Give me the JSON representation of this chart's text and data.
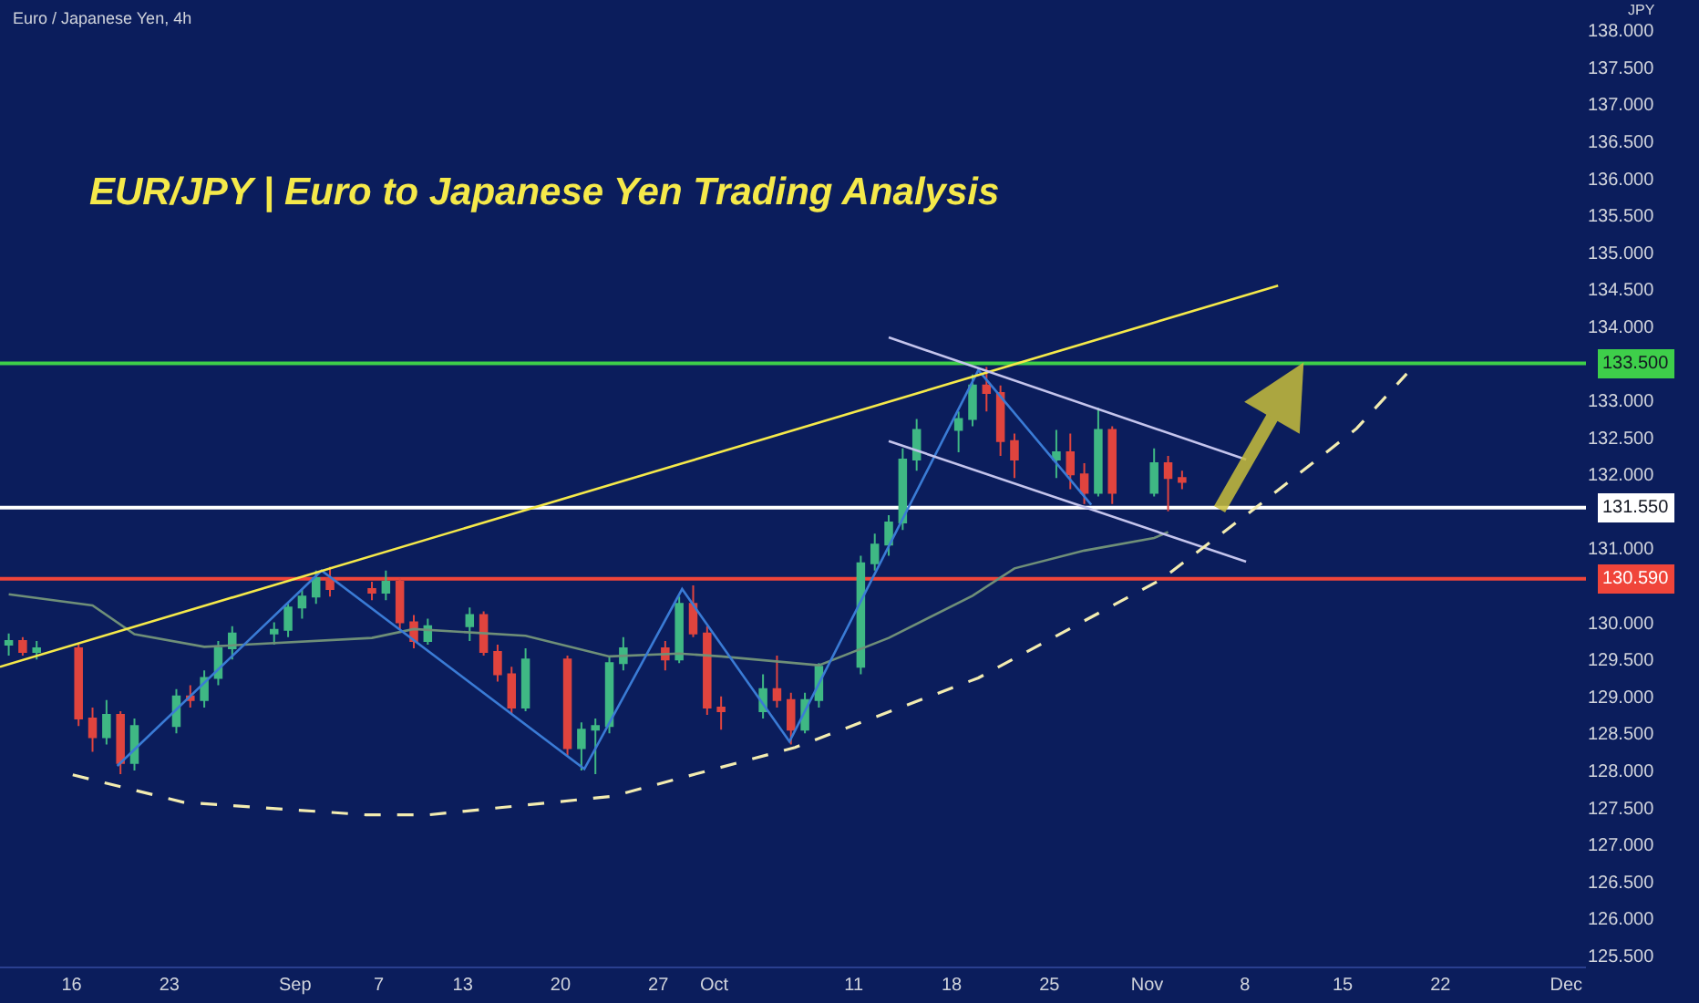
{
  "chart_data": {
    "type": "candlestick",
    "title": "EUR/JPY | Euro to Japanese Yen Trading Analysis",
    "ylabel": "JPY",
    "annotations": [
      "Euro / Japanese Yen, 4h"
    ],
    "x": [
      "--08-11T12:00",
      "--08-12T12:00",
      "--08-13T12:00",
      "--08-16T12:00",
      "--08-17T12:00",
      "--08-18T12:00",
      "--08-19T12:00",
      "--08-20T12:00",
      "--08-23T12:00",
      "--08-24T12:00",
      "--08-25T12:00",
      "--08-26T12:00",
      "--08-27T12:00",
      "--08-30T12:00",
      "--08-31T12:00",
      "--09-01T12:00",
      "--09-02T12:00",
      "--09-03T12:00",
      "--09-06T12:00",
      "--09-07T12:00",
      "--09-08T12:00",
      "--09-09T12:00",
      "--09-10T12:00",
      "--09-13T12:00",
      "--09-14T12:00",
      "--09-15T12:00",
      "--09-16T12:00",
      "--09-17T12:00",
      "--09-20T12:00",
      "--09-21T12:00",
      "--09-22T12:00",
      "--09-23T12:00",
      "--09-24T12:00",
      "--09-27T12:00",
      "--09-28T12:00",
      "--09-29T12:00",
      "--09-30T12:00",
      "--10-01T12:00",
      "--10-04T12:00",
      "--10-05T12:00",
      "--10-06T12:00",
      "--10-07T12:00",
      "--10-08T12:00",
      "--10-11T12:00",
      "--10-12T12:00",
      "--10-13T12:00",
      "--10-14T12:00",
      "--10-15T12:00",
      "--10-18T12:00",
      "--10-19T12:00",
      "--10-20T12:00",
      "--10-21T12:00",
      "--10-22T12:00",
      "--10-25T12:00",
      "--10-26T12:00",
      "--10-27T12:00",
      "--10-28T12:00",
      "--10-29T12:00",
      "--11-01T12:00",
      "--11-02T12:00",
      "--11-03T12:00"
    ],
    "ohlc": [
      [
        129.7,
        129.85,
        129.55,
        129.75
      ],
      [
        129.75,
        129.8,
        129.55,
        129.6
      ],
      [
        129.6,
        129.75,
        129.5,
        129.65
      ],
      [
        129.65,
        129.7,
        128.6,
        128.7
      ],
      [
        128.7,
        128.85,
        128.25,
        128.45
      ],
      [
        128.45,
        128.95,
        128.35,
        128.75
      ],
      [
        128.75,
        128.8,
        127.95,
        128.1
      ],
      [
        128.1,
        128.7,
        128.0,
        128.6
      ],
      [
        128.6,
        129.1,
        128.5,
        129.0
      ],
      [
        129.0,
        129.15,
        128.85,
        128.95
      ],
      [
        128.95,
        129.35,
        128.85,
        129.25
      ],
      [
        129.25,
        129.75,
        129.15,
        129.65
      ],
      [
        129.65,
        129.95,
        129.5,
        129.85
      ],
      [
        129.85,
        130.0,
        129.7,
        129.9
      ],
      [
        129.9,
        130.25,
        129.8,
        130.2
      ],
      [
        130.2,
        130.45,
        130.05,
        130.35
      ],
      [
        130.35,
        130.7,
        130.25,
        130.6
      ],
      [
        130.6,
        130.75,
        130.35,
        130.45
      ],
      [
        130.45,
        130.55,
        130.3,
        130.4
      ],
      [
        130.4,
        130.7,
        130.3,
        130.55
      ],
      [
        130.55,
        130.6,
        129.9,
        130.0
      ],
      [
        130.0,
        130.1,
        129.65,
        129.75
      ],
      [
        129.75,
        130.05,
        129.7,
        129.95
      ],
      [
        129.95,
        130.2,
        129.75,
        130.1
      ],
      [
        130.1,
        130.15,
        129.55,
        129.6
      ],
      [
        129.6,
        129.7,
        129.2,
        129.3
      ],
      [
        129.3,
        129.4,
        128.75,
        128.85
      ],
      [
        128.85,
        129.65,
        128.8,
        129.5
      ],
      [
        129.5,
        129.55,
        128.2,
        128.3
      ],
      [
        128.3,
        128.65,
        128.0,
        128.55
      ],
      [
        128.55,
        128.7,
        127.95,
        128.6
      ],
      [
        128.6,
        129.55,
        128.5,
        129.45
      ],
      [
        129.45,
        129.8,
        129.35,
        129.65
      ],
      [
        129.65,
        129.75,
        129.35,
        129.5
      ],
      [
        129.5,
        130.35,
        129.45,
        130.25
      ],
      [
        130.25,
        130.5,
        129.8,
        129.85
      ],
      [
        129.85,
        129.95,
        128.75,
        128.85
      ],
      [
        128.85,
        129.0,
        128.55,
        128.8
      ],
      [
        128.8,
        129.3,
        128.7,
        129.1
      ],
      [
        129.1,
        129.55,
        128.85,
        128.95
      ],
      [
        128.95,
        129.05,
        128.35,
        128.55
      ],
      [
        128.55,
        129.05,
        128.5,
        128.95
      ],
      [
        128.95,
        129.45,
        128.85,
        129.4
      ],
      [
        129.4,
        130.9,
        129.3,
        130.8
      ],
      [
        130.8,
        131.2,
        130.7,
        131.05
      ],
      [
        131.05,
        131.45,
        130.9,
        131.35
      ],
      [
        131.35,
        132.35,
        131.25,
        132.2
      ],
      [
        132.2,
        132.75,
        132.05,
        132.6
      ],
      [
        132.6,
        132.85,
        132.3,
        132.75
      ],
      [
        132.75,
        133.35,
        132.65,
        133.2
      ],
      [
        133.2,
        133.45,
        132.85,
        133.1
      ],
      [
        133.1,
        133.2,
        132.25,
        132.45
      ],
      [
        132.45,
        132.55,
        131.95,
        132.2
      ],
      [
        132.2,
        132.6,
        131.95,
        132.3
      ],
      [
        132.3,
        132.55,
        131.8,
        132.0
      ],
      [
        132.0,
        132.15,
        131.6,
        131.75
      ],
      [
        131.75,
        132.9,
        131.7,
        132.6
      ],
      [
        132.6,
        132.65,
        131.6,
        131.75
      ],
      [
        131.75,
        132.35,
        131.7,
        132.15
      ],
      [
        132.15,
        132.25,
        131.5,
        131.95
      ],
      [
        131.95,
        132.05,
        131.8,
        131.9
      ]
    ],
    "colors": [
      "#3fb884",
      "#e0443e",
      "#3fb884",
      "#e0443e",
      "#e0443e",
      "#3fb884",
      "#e0443e",
      "#3fb884",
      "#3fb884",
      "#e0443e",
      "#3fb884",
      "#3fb884",
      "#3fb884",
      "#3fb884",
      "#3fb884",
      "#3fb884",
      "#3fb884",
      "#e0443e",
      "#e0443e",
      "#3fb884",
      "#e0443e",
      "#e0443e",
      "#3fb884",
      "#3fb884",
      "#e0443e",
      "#e0443e",
      "#e0443e",
      "#3fb884",
      "#e0443e",
      "#3fb884",
      "#3fb884",
      "#3fb884",
      "#3fb884",
      "#e0443e",
      "#3fb884",
      "#e0443e",
      "#e0443e",
      "#e0443e",
      "#3fb884",
      "#e0443e",
      "#e0443e",
      "#3fb884",
      "#3fb884",
      "#3fb884",
      "#3fb884",
      "#3fb884",
      "#3fb884",
      "#3fb884",
      "#3fb884",
      "#3fb884",
      "#e0443e",
      "#e0443e",
      "#e0443e",
      "#3fb884",
      "#e0443e",
      "#e0443e",
      "#3fb884",
      "#e0443e",
      "#3fb884",
      "#e0443e",
      "#e0443e"
    ],
    "series": [
      {
        "type": "line",
        "color": "#6f8f78",
        "line_style": "solid",
        "x": [
          "--08-11T12:00",
          "--08-17T12:00",
          "--08-20T12:00",
          "--08-25T12:00",
          "--09-06T12:00",
          "--09-09T12:00",
          "--09-17T12:00",
          "--09-23T12:00",
          "--09-28T12:00",
          "--10-01T12:00",
          "--10-08T12:00",
          "--10-13T12:00",
          "--10-19T12:00",
          "--10-22T12:00",
          "--10-27T12:00",
          "--11-01T12:00",
          "--11-02T12:00"
        ],
        "values": [
          130.38,
          130.23,
          129.84,
          129.67,
          129.79,
          129.91,
          129.82,
          129.54,
          129.58,
          129.54,
          129.42,
          129.79,
          130.36,
          130.73,
          130.97,
          131.14,
          131.22
        ]
      },
      {
        "type": "line",
        "color": "#3a7bd5",
        "line_style": "solid",
        "x": [
          "--08-19T06:30",
          "--09-02T21:30",
          "--09-21T17:00",
          "--09-28T17:00",
          "--10-06T09:30",
          "--10-19T22:00",
          "--10-28T00:00"
        ],
        "values": [
          128.06,
          130.7,
          128.02,
          130.45,
          128.39,
          133.41,
          131.59
        ]
      },
      {
        "type": "line",
        "color": "#f5e94a",
        "line_style": "solid",
        "x": [
          "--08-10T21:00",
          "--11-10T09:00"
        ],
        "values": [
          129.4,
          134.55
        ]
      },
      {
        "type": "line",
        "color": "#c4c4ec",
        "line_style": "solid",
        "x": [
          "--10-13T12:00",
          "--11-08T02:00"
        ],
        "values": [
          133.85,
          132.2
        ]
      },
      {
        "type": "line",
        "color": "#c4c4ec",
        "line_style": "solid",
        "x": [
          "--10-13T12:00",
          "--11-08T02:00"
        ],
        "values": [
          132.45,
          130.82
        ]
      },
      {
        "type": "line",
        "color": "#f3ecb0",
        "line_style": "dashed",
        "x": [
          "--08-16T02:00",
          "--08-24T00:00",
          "--09-06T02:00",
          "--09-10T14:00",
          "--09-23T17:00",
          "--10-06T19:00",
          "--10-19T22:00",
          "--11-02T00:00",
          "--11-08T12:00",
          "--11-16T00:00",
          "--11-19T14:00"
        ],
        "values": [
          127.94,
          127.57,
          127.4,
          127.4,
          127.65,
          128.31,
          129.25,
          130.58,
          131.51,
          132.62,
          133.36
        ]
      }
    ],
    "ref_lines": [
      {
        "axis": "y",
        "value": 133.5,
        "label": "133.500",
        "color": "#3ecf4a"
      },
      {
        "axis": "y",
        "value": 131.55,
        "label": "131.550",
        "color": "#ffffff"
      },
      {
        "axis": "y",
        "value": 130.59,
        "label": "130.590",
        "color": "#f0453a"
      }
    ],
    "xlim": [
      "--08-10T21:00",
      "--12-02T10:00"
    ],
    "xticks": [
      {
        "value": "--08-16",
        "label": "16"
      },
      {
        "value": "--08-23",
        "label": "23"
      },
      {
        "value": "--09-01",
        "label": "Sep"
      },
      {
        "value": "--09-07",
        "label": "7"
      },
      {
        "value": "--09-13",
        "label": "13"
      },
      {
        "value": "--09-20",
        "label": "20"
      },
      {
        "value": "--09-27",
        "label": "27"
      },
      {
        "value": "--10-01",
        "label": "Oct"
      },
      {
        "value": "--10-11",
        "label": "11"
      },
      {
        "value": "--10-18",
        "label": "18"
      },
      {
        "value": "--10-25",
        "label": "25"
      },
      {
        "value": "--11-01",
        "label": "Nov"
      },
      {
        "value": "--11-08",
        "label": "8"
      },
      {
        "value": "--11-15",
        "label": "15"
      },
      {
        "value": "--11-22",
        "label": "22"
      },
      {
        "value": "--12-01",
        "label": "Dec"
      }
    ],
    "ylim": [
      125.35,
      138.41
    ],
    "yticks": [
      {
        "value": 125.5,
        "label": "125.500"
      },
      {
        "value": 126,
        "label": "126.000"
      },
      {
        "value": 126.5,
        "label": "126.500"
      },
      {
        "value": 127,
        "label": "127.000"
      },
      {
        "value": 127.5,
        "label": "127.500"
      },
      {
        "value": 128,
        "label": "128.000"
      },
      {
        "value": 128.5,
        "label": "128.500"
      },
      {
        "value": 129,
        "label": "129.000"
      },
      {
        "value": 129.5,
        "label": "129.500"
      },
      {
        "value": 130,
        "label": "130.000"
      },
      {
        "value": 131,
        "label": "131.000"
      },
      {
        "value": 132,
        "label": "132.000"
      },
      {
        "value": 132.5,
        "label": "132.500"
      },
      {
        "value": 133,
        "label": "133.000"
      },
      {
        "value": 134,
        "label": "134.000"
      },
      {
        "value": 134.5,
        "label": "134.500"
      },
      {
        "value": 135,
        "label": "135.000"
      },
      {
        "value": 135.5,
        "label": "135.500"
      },
      {
        "value": 136,
        "label": "136.000"
      },
      {
        "value": 136.5,
        "label": "136.500"
      },
      {
        "value": 137,
        "label": "137.000"
      },
      {
        "value": 137.5,
        "label": "137.500"
      },
      {
        "value": 138,
        "label": "138.000"
      }
    ],
    "marker": "none"
  }
}
